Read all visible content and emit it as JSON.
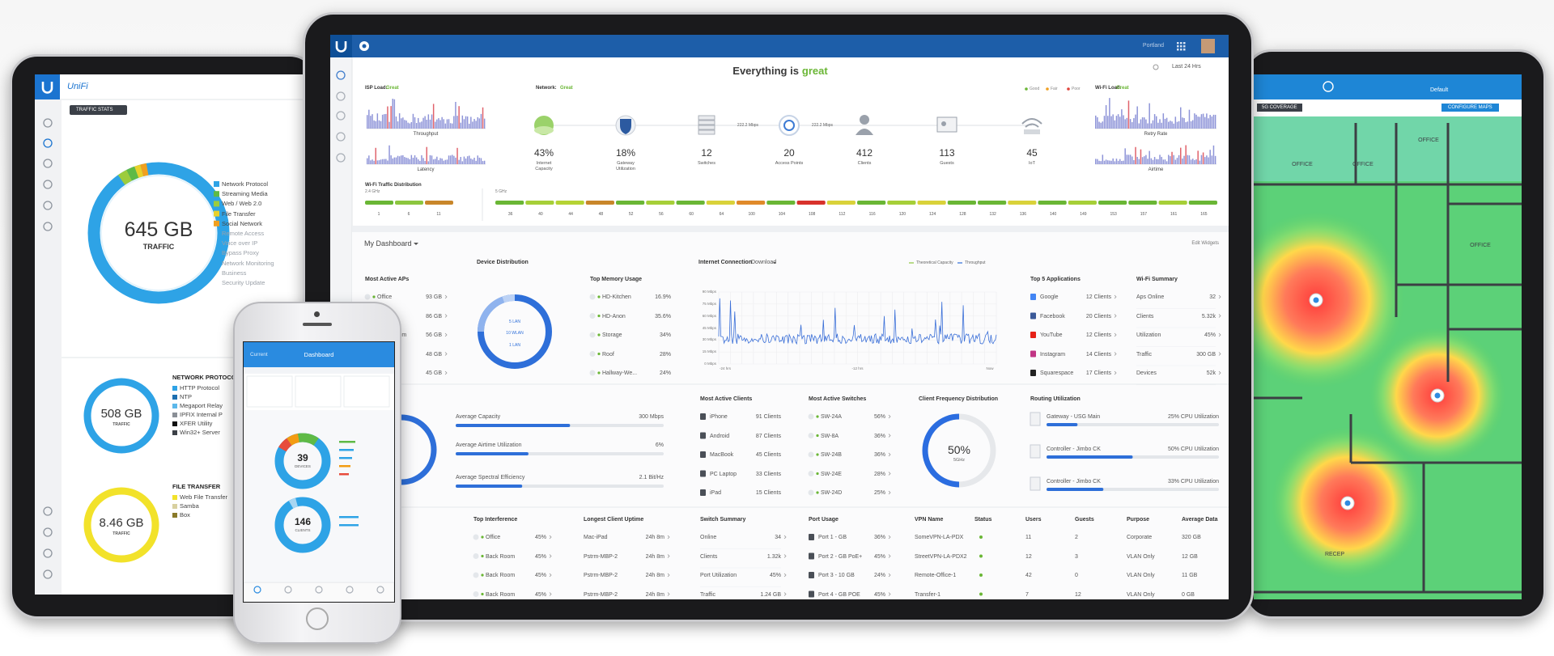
{
  "main": {
    "location": "Portland",
    "range": "Last 24 Hrs",
    "status": {
      "prefix": "Everything is",
      "word": "great"
    },
    "isp": {
      "label": "ISP Load:",
      "state": "Great",
      "charts": [
        "Throughput",
        "Latency"
      ]
    },
    "network": {
      "label": "Network:",
      "state": "Great",
      "legend": [
        "Good",
        "Fair",
        "Poor"
      ],
      "legendColors": [
        "#6ab635",
        "#f0a020",
        "#e0443c"
      ]
    },
    "stats": [
      {
        "value": "43%",
        "label": "Internet Capacity"
      },
      {
        "value": "18%",
        "label": "Gateway Utilization"
      },
      {
        "value": "12",
        "label": "Switches"
      },
      {
        "value": "20",
        "label": "Access Points"
      },
      {
        "value": "412",
        "label": "Clients"
      },
      {
        "value": "113",
        "label": "Guests"
      },
      {
        "value": "45",
        "label": "IoT"
      }
    ],
    "links": [
      "222.2 Mbps",
      "222.2 Mbps"
    ],
    "wifi": {
      "label": "Wi-Fi Load:",
      "state": "Great",
      "charts": [
        "Retry Rate",
        "Airtime"
      ]
    },
    "distribution": {
      "title": "Wi-Fi Traffic Distribution",
      "band24": "2.4 GHz",
      "channels24": [
        "1",
        "6",
        "11"
      ],
      "colors24": [
        "#6ab635",
        "#8cc63f",
        "#c8862a"
      ],
      "band5": "5 GHz",
      "channels5": [
        "36",
        "40",
        "44",
        "48",
        "52",
        "56",
        "60",
        "64",
        "100",
        "104",
        "108",
        "112",
        "116",
        "120",
        "124",
        "128",
        "132",
        "136",
        "140",
        "149",
        "153",
        "157",
        "161",
        "165"
      ],
      "colors5": [
        "#6ab635",
        "#a6cf38",
        "#b5d334",
        "#c8862a",
        "#6ab635",
        "#a6cf38",
        "#6ab635",
        "#d9d23a",
        "#e08a2a",
        "#6ab635",
        "#d8322c",
        "#d9d23a",
        "#6ab635",
        "#a6cf38",
        "#d9d23a",
        "#6ab635",
        "#6ab635",
        "#d9d23a",
        "#6ab635",
        "#a6cf38",
        "#6ab635",
        "#6ab635",
        "#a6cf38",
        "#6ab635"
      ]
    },
    "dashboard": {
      "title": "My Dashboard",
      "edit": "Edit Widgets"
    },
    "aps": {
      "title": "Most Active APs",
      "rows": [
        [
          "Office",
          "93 GB"
        ],
        [
          "Lobby",
          "86 GB"
        ],
        [
          "Back Room",
          "56 GB"
        ],
        [
          "Kitchen",
          "48 GB"
        ],
        [
          "Garage",
          "45 GB"
        ]
      ]
    },
    "devices": {
      "title": "Device Distribution",
      "labels": [
        "5 LAN",
        "10 WLAN",
        "1 LAN"
      ]
    },
    "memory": {
      "title": "Top Memory Usage",
      "rows": [
        [
          "HD-Kitchen",
          "16.9%"
        ],
        [
          "HD-Anon",
          "35.6%"
        ],
        [
          "Storage",
          "34%"
        ],
        [
          "Roof",
          "28%"
        ],
        [
          "Hallway-We...",
          "24%"
        ]
      ]
    },
    "internet": {
      "title": "Internet Connection",
      "mode": "Download",
      "legend": [
        "Theoretical Capacity",
        "Throughput"
      ],
      "yticks": [
        "90 Mbps",
        "75 Mbps",
        "60 Mbps",
        "45 Mbps",
        "30 Mbps",
        "15 Mbps",
        "0 Mbps"
      ],
      "xticks": [
        "-24 hrs",
        "-12 hrs",
        "Now"
      ]
    },
    "apps": {
      "title": "Top 5 Applications",
      "rows": [
        [
          "Google",
          "12 Clients"
        ],
        [
          "Facebook",
          "20 Clients"
        ],
        [
          "YouTube",
          "12 Clients"
        ],
        [
          "Instagram",
          "14 Clients"
        ],
        [
          "Squarespace",
          "17 Clients"
        ]
      ],
      "colors": [
        "#4285f4",
        "#3b5998",
        "#e62117",
        "#c13584",
        "#222222"
      ]
    },
    "wifiSummary": {
      "title": "Wi-Fi Summary",
      "rows": [
        [
          "Aps Online",
          "32"
        ],
        [
          "Clients",
          "5.32k"
        ],
        [
          "Utilization",
          "45%"
        ],
        [
          "Traffic",
          "300 GB"
        ],
        [
          "Devices",
          "52k"
        ]
      ]
    },
    "capacity": {
      "rows": [
        [
          "Average Capacity",
          "300 Mbps"
        ],
        [
          "Average Airtime Utilization",
          "6%"
        ],
        [
          "Average Spectral Efficiency",
          "2.1 Bit/Hz"
        ]
      ]
    },
    "clients": {
      "title": "Most Active Clients",
      "rows": [
        [
          "iPhone",
          "91 Clients"
        ],
        [
          "Android",
          "87 Clients"
        ],
        [
          "MacBook",
          "45 Clients"
        ],
        [
          "PC Laptop",
          "33 Clients"
        ],
        [
          "iPad",
          "15 Clients"
        ]
      ]
    },
    "switches": {
      "title": "Most Active Switches",
      "rows": [
        [
          "SW-24A",
          "56%"
        ],
        [
          "SW-8A",
          "36%"
        ],
        [
          "SW-24B",
          "36%"
        ],
        [
          "SW-24E",
          "28%"
        ],
        [
          "SW-24D",
          "25%"
        ]
      ]
    },
    "frequency": {
      "title": "Client Frequency Distribution",
      "value": "50%",
      "label": "5GHz"
    },
    "routing": {
      "title": "Routing Utilization",
      "rows": [
        [
          "Gateway - USG Main",
          "25% CPU Utilization"
        ],
        [
          "Controller - Jimbo CK",
          "50% CPU Utilization"
        ],
        [
          "Controller - Jimbo CK",
          "33% CPU Utilization"
        ]
      ]
    },
    "interference": {
      "title": "Top Interference",
      "rows": [
        [
          "Office",
          "45%"
        ],
        [
          "Back Room",
          "45%"
        ],
        [
          "Back Room",
          "45%"
        ],
        [
          "Back Room",
          "45%"
        ]
      ]
    },
    "uptime": {
      "title": "Longest Client Uptime",
      "rows": [
        [
          "Mac-iPad",
          "24h 8m"
        ],
        [
          "Pstrm-MBP-2",
          "24h 8m"
        ],
        [
          "Pstrm-MBP-2",
          "24h 8m"
        ],
        [
          "Pstrm-MBP-2",
          "24h 8m"
        ]
      ]
    },
    "switchSummary": {
      "title": "Switch Summary",
      "rows": [
        [
          "Online",
          "34"
        ],
        [
          "Clients",
          "1.32k"
        ],
        [
          "Port Utilization",
          "45%"
        ],
        [
          "Traffic",
          "1.24 GB"
        ]
      ]
    },
    "ports": {
      "title": "Port Usage",
      "rows": [
        [
          "Port 1 - GB",
          "36%"
        ],
        [
          "Port 2 - GB PoE+",
          "45%"
        ],
        [
          "Port 3 - 10 GB",
          "24%"
        ],
        [
          "Port 4 - GB POE",
          "45%"
        ]
      ]
    },
    "vpn": {
      "header": [
        "VPN Name",
        "Status",
        "Users",
        "Guests",
        "Purpose",
        "Average Data"
      ],
      "rows": [
        [
          "SomeVPN-LA-PDX",
          "11",
          "2",
          "Corporate",
          "320 GB"
        ],
        [
          "StreetVPN-LA-PDX2",
          "12",
          "3",
          "VLAN Only",
          "12 GB"
        ],
        [
          "Remote-Office-1",
          "42",
          "0",
          "VLAN Only",
          "11 GB"
        ],
        [
          "Transfer-1",
          "7",
          "12",
          "VLAN Only",
          "0 GB"
        ]
      ]
    }
  },
  "left": {
    "brand": "UniFi",
    "button": "TRAFFIC STATS",
    "total": "645 GB",
    "totalLabel": "TRAFFIC",
    "legend": [
      "Network Protocol",
      "Streaming Media",
      "Web / Web 2.0",
      "File Transfer",
      "Social Network",
      "Remote Access",
      "Voice over IP",
      "Bypass Proxy",
      "Network Monitoring",
      "Business",
      "Security Update"
    ],
    "legendColors": [
      "#2ea3e6",
      "#5fba46",
      "#9ccc3d",
      "#e9d12a",
      "#f0a020"
    ],
    "protocol": {
      "value": "508 GB",
      "label": "TRAFFIC",
      "title": "NETWORK PROTOCOL",
      "items": [
        "HTTP Protocol",
        "NTP",
        "Megaport Relay",
        "IPFIX Internal P",
        "XFER Utility",
        "Win32+ Server"
      ]
    },
    "files": {
      "value": "8.46 GB",
      "label": "TRAFFIC",
      "title": "FILE TRANSFER",
      "items": [
        "Web File Transfer",
        "Samba",
        "Box"
      ]
    }
  },
  "phone": {
    "back": "Current",
    "title": "Dashboard",
    "devices": {
      "value": "39",
      "label": "DEVICES"
    },
    "clients": {
      "value": "146",
      "label": "CLIENTS"
    }
  },
  "right": {
    "site": "Default",
    "coverage": "5G COVERAGE",
    "configure": "CONFIGURE MAPS",
    "rooms": [
      "OFFICE",
      "OFFICE",
      "OFFICE",
      "OFFICE",
      "RECEP"
    ]
  }
}
